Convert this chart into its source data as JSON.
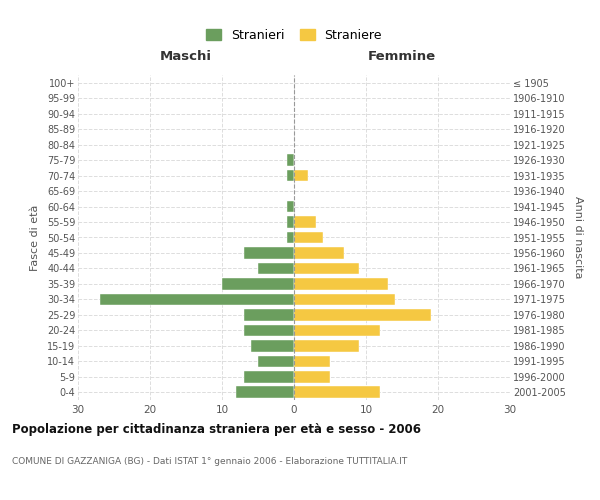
{
  "age_groups": [
    "0-4",
    "5-9",
    "10-14",
    "15-19",
    "20-24",
    "25-29",
    "30-34",
    "35-39",
    "40-44",
    "45-49",
    "50-54",
    "55-59",
    "60-64",
    "65-69",
    "70-74",
    "75-79",
    "80-84",
    "85-89",
    "90-94",
    "95-99",
    "100+"
  ],
  "birth_years": [
    "2001-2005",
    "1996-2000",
    "1991-1995",
    "1986-1990",
    "1981-1985",
    "1976-1980",
    "1971-1975",
    "1966-1970",
    "1961-1965",
    "1956-1960",
    "1951-1955",
    "1946-1950",
    "1941-1945",
    "1936-1940",
    "1931-1935",
    "1926-1930",
    "1921-1925",
    "1916-1920",
    "1911-1915",
    "1906-1910",
    "≤ 1905"
  ],
  "maschi": [
    8,
    7,
    5,
    6,
    7,
    7,
    27,
    10,
    5,
    7,
    1,
    1,
    1,
    0,
    1,
    1,
    0,
    0,
    0,
    0,
    0
  ],
  "femmine": [
    12,
    5,
    5,
    9,
    12,
    19,
    14,
    13,
    9,
    7,
    4,
    3,
    0,
    0,
    2,
    0,
    0,
    0,
    0,
    0,
    0
  ],
  "color_maschi": "#6b9e5e",
  "color_femmine": "#f5c842",
  "background_color": "#ffffff",
  "grid_color": "#dddddd",
  "title": "Popolazione per cittadinanza straniera per età e sesso - 2006",
  "subtitle": "COMUNE DI GAZZANIGA (BG) - Dati ISTAT 1° gennaio 2006 - Elaborazione TUTTITALIA.IT",
  "xlabel_left": "Maschi",
  "xlabel_right": "Femmine",
  "ylabel_left": "Fasce di età",
  "ylabel_right": "Anni di nascita",
  "legend_maschi": "Stranieri",
  "legend_femmine": "Straniere",
  "xlim": 30,
  "bar_height": 0.75
}
